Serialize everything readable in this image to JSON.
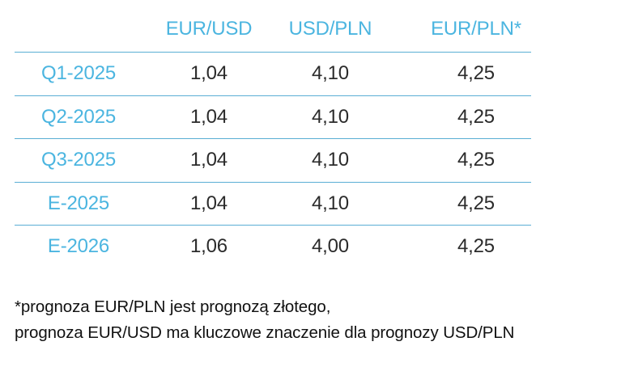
{
  "table": {
    "headers": [
      "",
      "EUR/USD",
      "USD/PLN",
      "EUR/PLN*"
    ],
    "rows": [
      {
        "label": "Q1-2025",
        "values": [
          "1,04",
          "4,10",
          "4,25"
        ]
      },
      {
        "label": "Q2-2025",
        "values": [
          "1,04",
          "4,10",
          "4,25"
        ]
      },
      {
        "label": "Q3-2025",
        "values": [
          "1,04",
          "4,10",
          "4,25"
        ]
      },
      {
        "label": "E-2025",
        "values": [
          "1,04",
          "4,10",
          "4,25"
        ]
      },
      {
        "label": "E-2026",
        "values": [
          "1,06",
          "4,00",
          "4,25"
        ]
      }
    ]
  },
  "footnote": {
    "line1": "*prognoza EUR/PLN jest prognozą złotego,",
    "line2": "prognoza EUR/USD ma kluczowe znaczenie dla prognozy USD/PLN"
  },
  "colors": {
    "accent": "#4bb5e0",
    "rule": "#5aaed4",
    "text": "#2b2b2b"
  }
}
